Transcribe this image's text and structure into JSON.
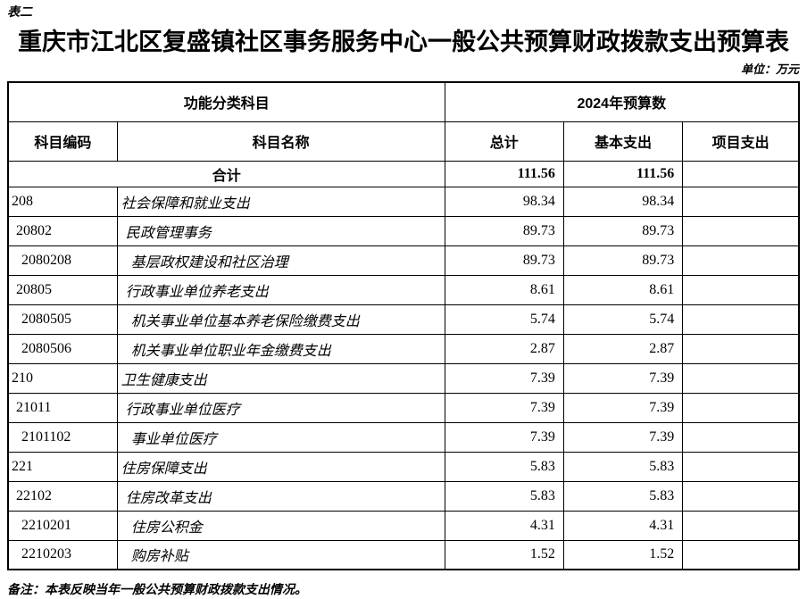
{
  "meta": {
    "table_label": "表二",
    "title": "重庆市江北区复盛镇社区事务服务中心一般公共预算财政拨款支出预算表",
    "unit_note": "单位：万元",
    "footnote": "备注：本表反映当年一般公共预算财政拨款支出情况。"
  },
  "table": {
    "header": {
      "function_category": "功能分类科目",
      "budget_year": "2024年预算数",
      "code": "科目编码",
      "name": "科目名称",
      "total": "总计",
      "basic": "基本支出",
      "project": "项目支出"
    },
    "rows": [
      {
        "type": "total",
        "level": 0,
        "code": "",
        "name": "合计",
        "total": "111.56",
        "basic": "111.56",
        "project": ""
      },
      {
        "type": "data",
        "level": 0,
        "code": "208",
        "name": "社会保障和就业支出",
        "total": "98.34",
        "basic": "98.34",
        "project": ""
      },
      {
        "type": "data",
        "level": 1,
        "code": "20802",
        "name": "民政管理事务",
        "total": "89.73",
        "basic": "89.73",
        "project": ""
      },
      {
        "type": "data",
        "level": 2,
        "code": "2080208",
        "name": "基层政权建设和社区治理",
        "total": "89.73",
        "basic": "89.73",
        "project": ""
      },
      {
        "type": "data",
        "level": 1,
        "code": "20805",
        "name": "行政事业单位养老支出",
        "total": "8.61",
        "basic": "8.61",
        "project": ""
      },
      {
        "type": "data",
        "level": 2,
        "code": "2080505",
        "name": "机关事业单位基本养老保险缴费支出",
        "total": "5.74",
        "basic": "5.74",
        "project": ""
      },
      {
        "type": "data",
        "level": 2,
        "code": "2080506",
        "name": "机关事业单位职业年金缴费支出",
        "total": "2.87",
        "basic": "2.87",
        "project": ""
      },
      {
        "type": "data",
        "level": 0,
        "code": "210",
        "name": "卫生健康支出",
        "total": "7.39",
        "basic": "7.39",
        "project": ""
      },
      {
        "type": "data",
        "level": 1,
        "code": "21011",
        "name": "行政事业单位医疗",
        "total": "7.39",
        "basic": "7.39",
        "project": ""
      },
      {
        "type": "data",
        "level": 2,
        "code": "2101102",
        "name": "事业单位医疗",
        "total": "7.39",
        "basic": "7.39",
        "project": ""
      },
      {
        "type": "data",
        "level": 0,
        "code": "221",
        "name": "住房保障支出",
        "total": "5.83",
        "basic": "5.83",
        "project": ""
      },
      {
        "type": "data",
        "level": 1,
        "code": "22102",
        "name": "住房改革支出",
        "total": "5.83",
        "basic": "5.83",
        "project": ""
      },
      {
        "type": "data",
        "level": 2,
        "code": "2210201",
        "name": "住房公积金",
        "total": "4.31",
        "basic": "4.31",
        "project": ""
      },
      {
        "type": "data",
        "level": 2,
        "code": "2210203",
        "name": "购房补贴",
        "total": "1.52",
        "basic": "1.52",
        "project": ""
      }
    ]
  }
}
